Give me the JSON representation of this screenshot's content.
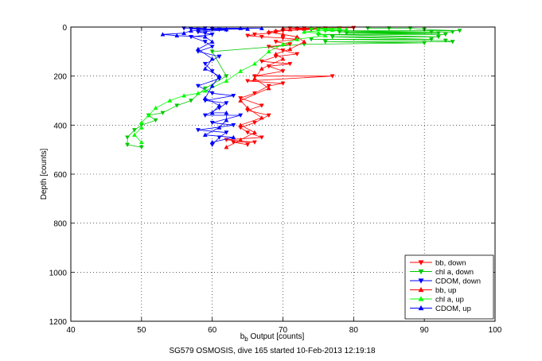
{
  "chart_data": {
    "type": "scatter",
    "title": "",
    "caption": "SG579 OSMOSIS, dive 165 started 10-Feb-2013 12:19:18",
    "xlabel_main": "b",
    "xlabel_sub": "b",
    "xlabel_rest": " Output [counts]",
    "ylabel": "Depth [counts]",
    "xlim": [
      40,
      100
    ],
    "ylim": [
      0,
      1200
    ],
    "y_reversed": true,
    "grid": true,
    "legend_position": "bottom-right",
    "xticks": [
      "40",
      "50",
      "60",
      "70",
      "80",
      "90",
      "100"
    ],
    "yticks": [
      "0",
      "200",
      "400",
      "600",
      "800",
      "1000",
      "1200"
    ],
    "series": [
      {
        "name": "bb, down",
        "color": "#ff0000",
        "marker": "triangle-down",
        "points": [
          [
            71,
            5
          ],
          [
            72,
            8
          ],
          [
            73,
            5
          ],
          [
            74,
            10
          ],
          [
            75,
            8
          ],
          [
            76,
            5
          ],
          [
            78,
            5
          ],
          [
            80,
            3
          ],
          [
            70,
            15
          ],
          [
            69,
            20
          ],
          [
            68,
            25
          ],
          [
            66,
            30
          ],
          [
            65,
            35
          ],
          [
            67,
            40
          ],
          [
            70,
            45
          ],
          [
            72,
            50
          ],
          [
            69,
            60
          ],
          [
            71,
            70
          ],
          [
            68,
            80
          ],
          [
            70,
            95
          ],
          [
            72,
            110
          ],
          [
            69,
            120
          ],
          [
            67,
            140
          ],
          [
            68,
            160
          ],
          [
            70,
            180
          ],
          [
            66,
            200
          ],
          [
            65,
            220
          ],
          [
            68,
            240
          ],
          [
            70,
            230
          ],
          [
            66,
            270
          ],
          [
            64,
            290
          ],
          [
            67,
            320
          ],
          [
            65,
            340
          ],
          [
            68,
            360
          ],
          [
            66,
            390
          ],
          [
            64,
            410
          ],
          [
            65,
            430
          ],
          [
            67,
            450
          ],
          [
            66,
            470
          ],
          [
            65,
            480
          ],
          [
            63,
            470
          ],
          [
            62,
            460
          ],
          [
            71,
            150
          ],
          [
            77,
            200
          ]
        ]
      },
      {
        "name": "chl a, down",
        "color": "#00c800",
        "marker": "triangle-down",
        "points": [
          [
            82,
            5
          ],
          [
            85,
            5
          ],
          [
            88,
            5
          ],
          [
            90,
            10
          ],
          [
            91,
            20
          ],
          [
            92,
            25
          ],
          [
            93,
            30
          ],
          [
            94,
            20
          ],
          [
            95,
            15
          ],
          [
            92,
            40
          ],
          [
            93,
            55
          ],
          [
            91,
            50
          ],
          [
            90,
            65
          ],
          [
            94,
            60
          ],
          [
            76,
            15
          ],
          [
            78,
            20
          ],
          [
            79,
            25
          ],
          [
            75,
            30
          ],
          [
            77,
            40
          ],
          [
            74,
            50
          ],
          [
            76,
            60
          ],
          [
            73,
            70
          ],
          [
            60,
            100
          ],
          [
            62,
            200
          ],
          [
            59,
            250
          ],
          [
            57,
            300
          ],
          [
            55,
            320
          ],
          [
            53,
            350
          ],
          [
            52,
            380
          ],
          [
            50,
            400
          ],
          [
            49,
            420
          ],
          [
            48,
            450
          ],
          [
            48,
            480
          ],
          [
            50,
            490
          ],
          [
            51,
            360
          ]
        ]
      },
      {
        "name": "CDOM, down",
        "color": "#0000ff",
        "marker": "triangle-down",
        "points": [
          [
            56,
            5
          ],
          [
            57,
            8
          ],
          [
            58,
            10
          ],
          [
            59,
            5
          ],
          [
            60,
            8
          ],
          [
            61,
            10
          ],
          [
            62,
            12
          ],
          [
            58,
            20
          ],
          [
            59,
            25
          ],
          [
            60,
            30
          ],
          [
            57,
            40
          ],
          [
            59,
            60
          ],
          [
            60,
            80
          ],
          [
            58,
            100
          ],
          [
            61,
            120
          ],
          [
            59,
            150
          ],
          [
            60,
            180
          ],
          [
            61,
            210
          ],
          [
            58,
            240
          ],
          [
            60,
            270
          ],
          [
            59,
            300
          ],
          [
            61,
            330
          ],
          [
            59,
            360
          ],
          [
            60,
            390
          ],
          [
            58,
            420
          ],
          [
            61,
            450
          ],
          [
            60,
            480
          ],
          [
            62,
            430
          ],
          [
            63,
            400
          ],
          [
            64,
            360
          ],
          [
            62,
            310
          ],
          [
            63,
            280
          ]
        ]
      },
      {
        "name": "bb, up",
        "color": "#ff0000",
        "marker": "triangle-up",
        "points": [
          [
            70,
            5
          ],
          [
            71,
            10
          ],
          [
            72,
            5
          ],
          [
            73,
            8
          ],
          [
            74,
            5
          ],
          [
            69,
            15
          ],
          [
            68,
            20
          ],
          [
            70,
            30
          ],
          [
            72,
            40
          ],
          [
            73,
            60
          ],
          [
            71,
            90
          ],
          [
            69,
            110
          ],
          [
            70,
            130
          ],
          [
            67,
            170
          ],
          [
            66,
            210
          ],
          [
            68,
            250
          ],
          [
            64,
            300
          ],
          [
            65,
            330
          ],
          [
            67,
            370
          ],
          [
            64,
            400
          ],
          [
            66,
            430
          ],
          [
            64,
            460
          ],
          [
            62,
            490
          ]
        ]
      },
      {
        "name": "chl a, up",
        "color": "#00ff00",
        "marker": "triangle-up",
        "points": [
          [
            74,
            5
          ],
          [
            75,
            8
          ],
          [
            76,
            10
          ],
          [
            77,
            12
          ],
          [
            78,
            5
          ],
          [
            79,
            10
          ],
          [
            73,
            20
          ],
          [
            75,
            25
          ],
          [
            76,
            35
          ],
          [
            72,
            50
          ],
          [
            70,
            70
          ],
          [
            68,
            100
          ],
          [
            66,
            150
          ],
          [
            64,
            180
          ],
          [
            62,
            220
          ],
          [
            59,
            260
          ],
          [
            56,
            280
          ],
          [
            54,
            300
          ],
          [
            52,
            330
          ],
          [
            51,
            360
          ],
          [
            50,
            390
          ],
          [
            50,
            410
          ],
          [
            49,
            440
          ],
          [
            50,
            470
          ],
          [
            58,
            270
          ]
        ]
      },
      {
        "name": "CDOM, up",
        "color": "#0000ff",
        "marker": "triangle-up",
        "points": [
          [
            53,
            30
          ],
          [
            55,
            35
          ],
          [
            56,
            25
          ],
          [
            57,
            15
          ],
          [
            58,
            10
          ],
          [
            59,
            8
          ],
          [
            60,
            5
          ],
          [
            62,
            10
          ],
          [
            64,
            5
          ],
          [
            65,
            8
          ],
          [
            67,
            5
          ],
          [
            59,
            40
          ],
          [
            60,
            60
          ],
          [
            58,
            90
          ],
          [
            60,
            130
          ],
          [
            59,
            170
          ],
          [
            61,
            200
          ],
          [
            60,
            240
          ],
          [
            59,
            290
          ],
          [
            61,
            320
          ],
          [
            60,
            350
          ],
          [
            62,
            380
          ],
          [
            61,
            410
          ],
          [
            59,
            440
          ],
          [
            60,
            470
          ],
          [
            63,
            450
          ],
          [
            62,
            350
          ]
        ]
      }
    ]
  }
}
